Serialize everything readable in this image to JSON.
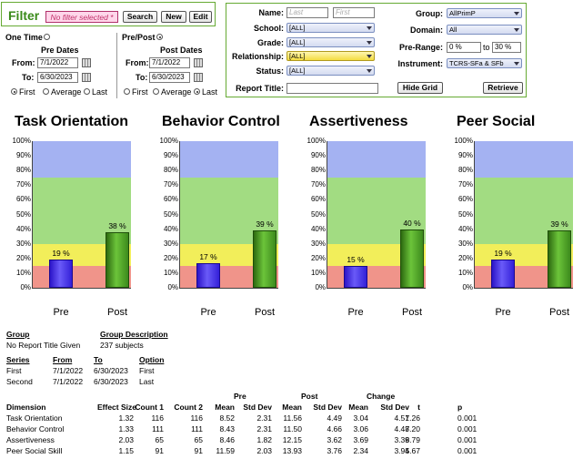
{
  "filter": {
    "title": "Filter",
    "selected": "No filter selected *",
    "search_label": "Search",
    "new_label": "New",
    "edit_label": "Edit"
  },
  "mode": {
    "one_time": "One Time",
    "pre_post": "Pre/Post",
    "selected": "pre_post"
  },
  "pre_dates": {
    "title": "Pre Dates",
    "from_label": "From:",
    "to_label": "To:",
    "from": "7/1/2022",
    "to": "6/30/2023",
    "options": [
      "First",
      "Average",
      "Last"
    ],
    "selected": "First"
  },
  "post_dates": {
    "title": "Post Dates",
    "from_label": "From:",
    "to_label": "To:",
    "from": "7/1/2022",
    "to": "6/30/2023",
    "options": [
      "First",
      "Average",
      "Last"
    ],
    "selected": "Last"
  },
  "criteria": {
    "name_label": "Name:",
    "last_placeholder": "Last",
    "first_placeholder": "First",
    "school_label": "School:",
    "school": "[ALL]",
    "grade_label": "Grade:",
    "grade": "[ALL]",
    "relationship_label": "Relationship:",
    "relationship": "[ALL]",
    "status_label": "Status:",
    "status": "[ALL]",
    "report_title_label": "Report Title:",
    "report_title": "",
    "group_label": "Group:",
    "group": "AllPrimP",
    "domain_label": "Domain:",
    "domain": "All",
    "pre_range_label": "Pre-Range:",
    "pre_range_from": "0 %",
    "pre_range_to_label": "to",
    "pre_range_to": "30 %",
    "instrument_label": "Instrument:",
    "instrument": "TCRS-SFa & SFb",
    "hide_grid_label": "Hide Grid",
    "retrieve_label": "Retrieve"
  },
  "colors": {
    "band_low": "#f0948a",
    "band_mid_low": "#f2ee5a",
    "band_mid_high": "#a2dc82",
    "band_high": "#a4b2f2",
    "pre_bar": "#3d28e0",
    "post_bar": "#4c9a24"
  },
  "chart_data": [
    {
      "type": "bar",
      "title": "Task Orientation",
      "categories": [
        "Pre",
        "Post"
      ],
      "values": [
        19,
        38
      ],
      "value_labels": [
        "19 %",
        "38 %"
      ],
      "ylim": [
        0,
        100
      ],
      "yticks": [
        "0%",
        "10%",
        "20%",
        "30%",
        "40%",
        "50%",
        "60%",
        "70%",
        "80%",
        "90%",
        "100%"
      ],
      "bands": [
        15,
        30,
        75,
        100
      ]
    },
    {
      "type": "bar",
      "title": "Behavior Control",
      "categories": [
        "Pre",
        "Post"
      ],
      "values": [
        17,
        39
      ],
      "value_labels": [
        "17 %",
        "39 %"
      ],
      "ylim": [
        0,
        100
      ],
      "yticks": [
        "0%",
        "10%",
        "20%",
        "30%",
        "40%",
        "50%",
        "60%",
        "70%",
        "80%",
        "90%",
        "100%"
      ],
      "bands": [
        15,
        30,
        75,
        100
      ]
    },
    {
      "type": "bar",
      "title": "Assertiveness",
      "categories": [
        "Pre",
        "Post"
      ],
      "values": [
        15,
        40
      ],
      "value_labels": [
        "15 %",
        "40 %"
      ],
      "ylim": [
        0,
        100
      ],
      "yticks": [
        "0%",
        "10%",
        "20%",
        "30%",
        "40%",
        "50%",
        "60%",
        "70%",
        "80%",
        "90%",
        "100%"
      ],
      "bands": [
        15,
        30,
        75,
        100
      ]
    },
    {
      "type": "bar",
      "title": "Peer Social",
      "categories": [
        "Pre",
        "Post"
      ],
      "values": [
        19,
        39
      ],
      "value_labels": [
        "19 %",
        "39 %"
      ],
      "ylim": [
        0,
        100
      ],
      "yticks": [
        "0%",
        "10%",
        "20%",
        "30%",
        "40%",
        "50%",
        "60%",
        "70%",
        "80%",
        "90%",
        "100%"
      ],
      "bands": [
        15,
        30,
        75,
        100
      ]
    }
  ],
  "summary": {
    "group_header": "Group",
    "group_desc_header": "Group Description",
    "group_value": "No Report Title Given",
    "group_desc_value": "237 subjects",
    "series_header": "Series",
    "from_header": "From",
    "to_header": "To",
    "option_header": "Option",
    "series": [
      {
        "name": "First",
        "from": "7/1/2022",
        "to": "6/30/2023",
        "option": "First"
      },
      {
        "name": "Second",
        "from": "7/1/2022",
        "to": "6/30/2023",
        "option": "Last"
      }
    ],
    "group_headers": {
      "pre": "Pre",
      "post": "Post",
      "change": "Change"
    },
    "columns": [
      "Dimension",
      "Effect Size",
      "Count 1",
      "Count 2",
      "Mean",
      "Std Dev",
      "Mean",
      "Std Dev",
      "Mean",
      "Std Dev",
      "t",
      "p"
    ],
    "rows": [
      [
        "Task Orientation",
        "1.32",
        "116",
        "116",
        "8.52",
        "2.31",
        "11.56",
        "4.49",
        "3.04",
        "4.51",
        "7.26",
        "0.001"
      ],
      [
        "Behavior Control",
        "1.33",
        "111",
        "111",
        "8.43",
        "2.31",
        "11.50",
        "4.66",
        "3.06",
        "4.48",
        "7.20",
        "0.001"
      ],
      [
        "Assertiveness",
        "2.03",
        "65",
        "65",
        "8.46",
        "1.82",
        "12.15",
        "3.62",
        "3.69",
        "3.39",
        "8.79",
        "0.001"
      ],
      [
        "Peer Social Skill",
        "1.15",
        "91",
        "91",
        "11.59",
        "2.03",
        "13.93",
        "3.76",
        "2.34",
        "3.94",
        "5.67",
        "0.001"
      ]
    ]
  }
}
